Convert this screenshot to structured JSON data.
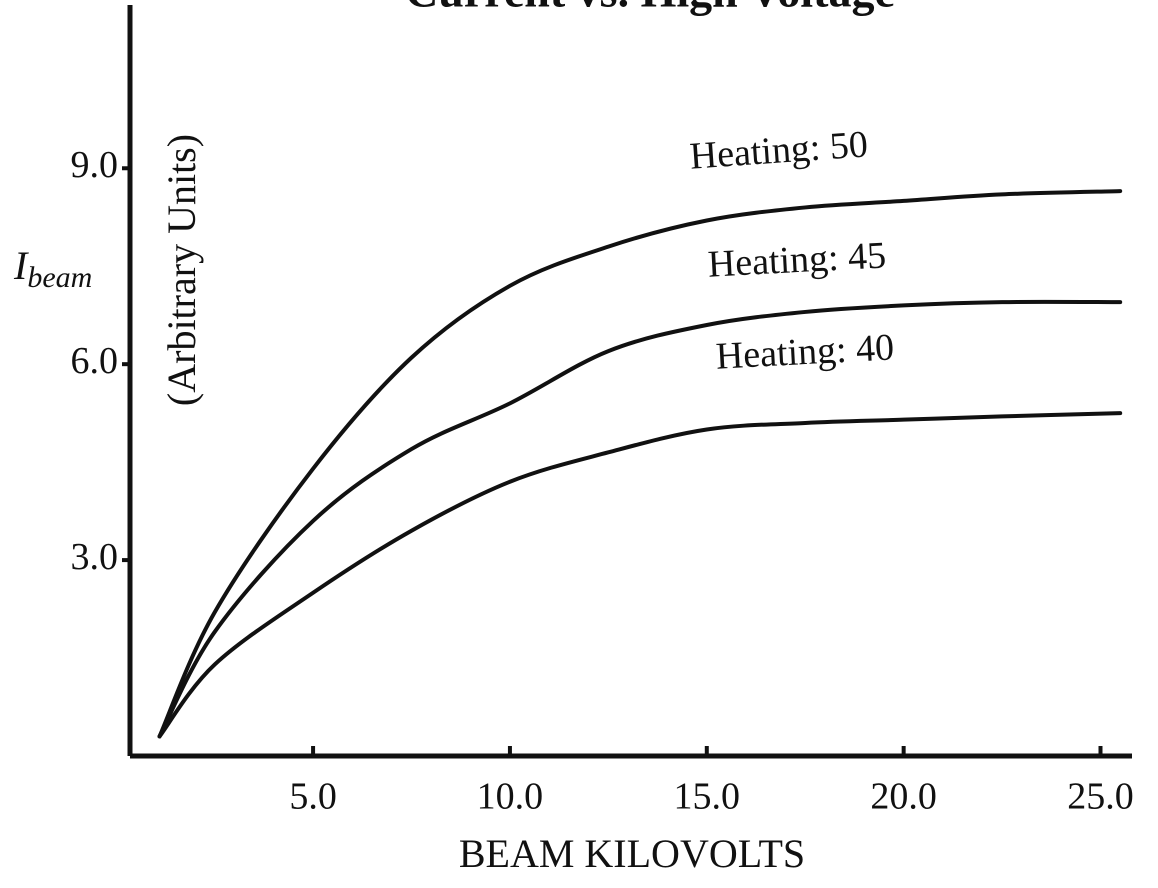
{
  "chart_data": {
    "type": "line",
    "title": "Current vs. High Voltage",
    "x_label": "BEAM KILOVOLTS",
    "y_label": "I",
    "y_label_subscript": "beam",
    "y_label_units": "(Arbitrary Units)",
    "x": [
      1.1,
      2.5,
      5,
      7.5,
      10,
      12.5,
      15,
      17.5,
      20,
      22.5,
      25.5
    ],
    "series": [
      {
        "name": "Heating: 50",
        "color": "#111111",
        "values": [
          0.3,
          2.2,
          4.4,
          6.1,
          7.2,
          7.8,
          8.2,
          8.4,
          8.5,
          8.6,
          8.65
        ]
      },
      {
        "name": "Heating: 45",
        "color": "#111111",
        "values": [
          0.3,
          1.9,
          3.6,
          4.7,
          5.4,
          6.2,
          6.6,
          6.8,
          6.9,
          6.95,
          6.95
        ]
      },
      {
        "name": "Heating: 40",
        "color": "#111111",
        "values": [
          0.3,
          1.4,
          2.5,
          3.45,
          4.2,
          4.65,
          5.0,
          5.1,
          5.15,
          5.2,
          5.25
        ]
      }
    ],
    "xlim": [
      0.35,
      25.8
    ],
    "ylim": [
      0,
      11.5
    ],
    "xticks": [
      {
        "value": 5,
        "label": "5.0"
      },
      {
        "value": 10,
        "label": "10.0"
      },
      {
        "value": 15,
        "label": "15.0"
      },
      {
        "value": 20,
        "label": "20.0"
      },
      {
        "value": 25,
        "label": "25.0"
      }
    ],
    "yticks": [
      {
        "value": 3,
        "label": "3.0"
      },
      {
        "value": 6,
        "label": "6.0"
      },
      {
        "value": 9,
        "label": "9.0"
      }
    ],
    "grid": false
  }
}
